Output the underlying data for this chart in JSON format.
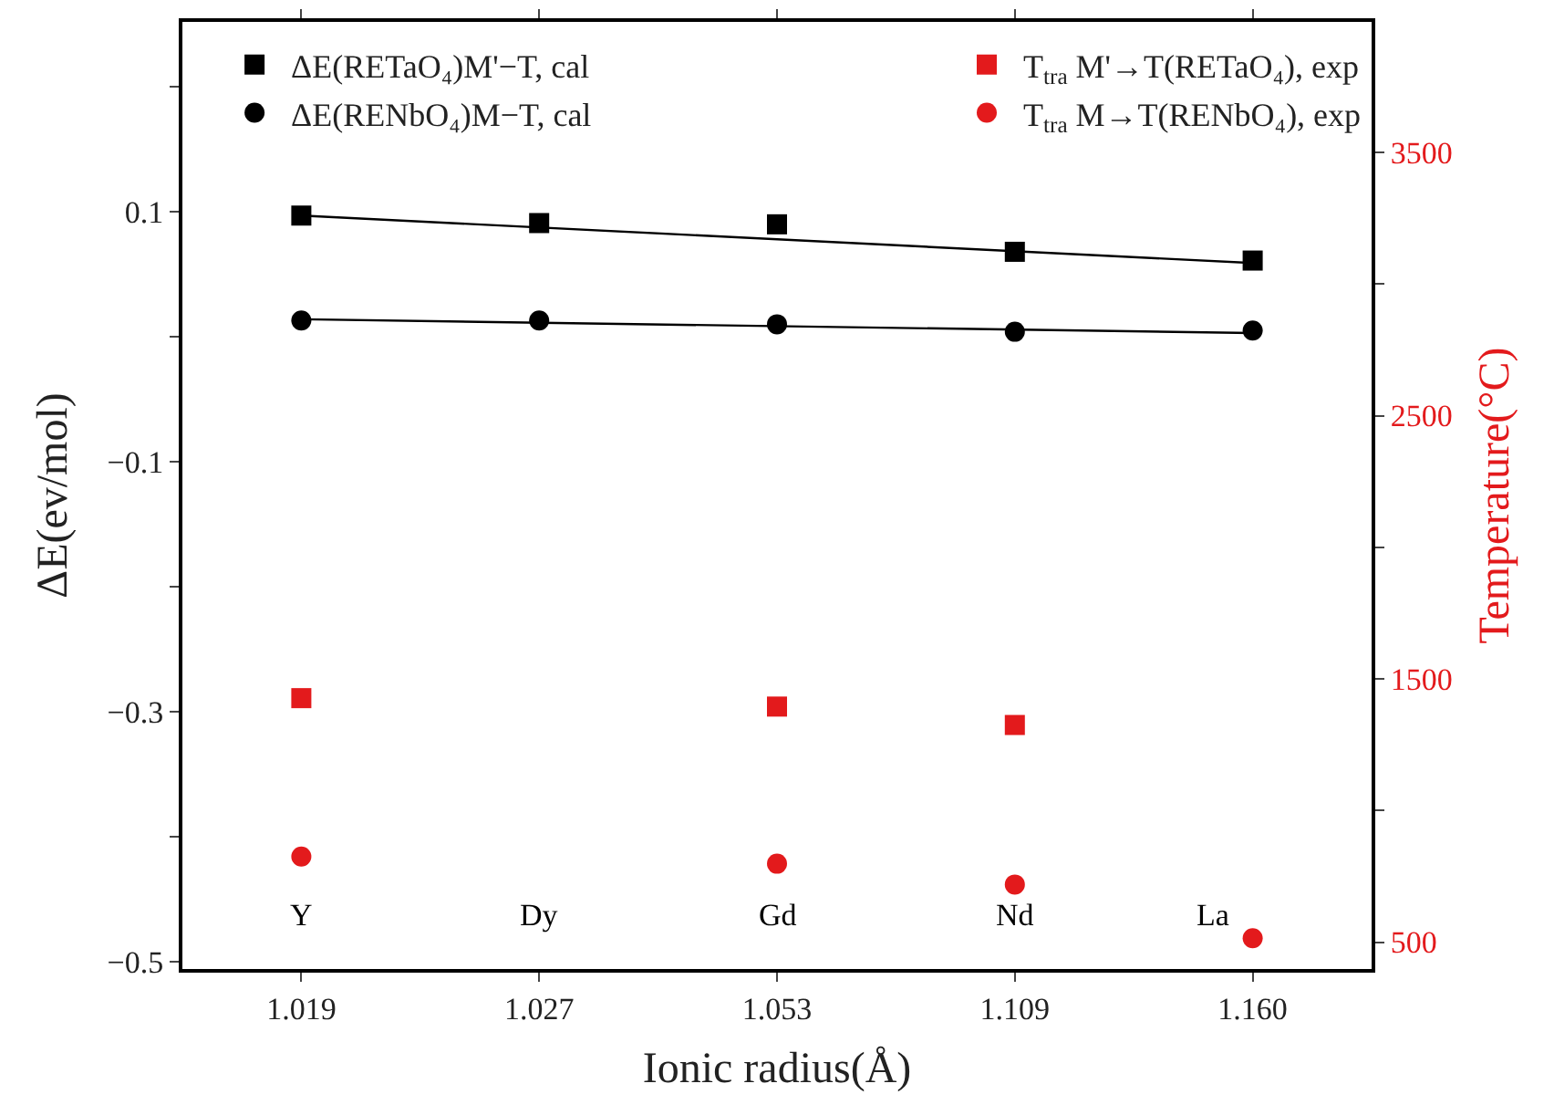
{
  "chart_data": {
    "type": "scatter",
    "xlabel": "Ionic radius(Å)",
    "ylabel": "ΔE(ev/mol)",
    "y2label": "Temperature(°C)",
    "categories": [
      "1.019",
      "1.027",
      "1.053",
      "1.109",
      "1.160"
    ],
    "ylim": [
      -0.506,
      0.252
    ],
    "yticks": [
      {
        "value": 0.2,
        "label": null
      },
      {
        "value": 0.1,
        "label": "0.1"
      },
      {
        "value": 0,
        "label": null
      },
      {
        "value": -0.1,
        "label": "−0.1"
      },
      {
        "value": -0.2,
        "label": null
      },
      {
        "value": -0.3,
        "label": "−0.3"
      },
      {
        "value": -0.4,
        "label": null
      },
      {
        "value": -0.5,
        "label": "−0.5"
      }
    ],
    "y2lim": [
      398,
      3996
    ],
    "y2ticks": [
      3500,
      {
        "value": 3000,
        "label": null
      },
      2500,
      {
        "value": 2000,
        "label": null
      },
      1500,
      {
        "value": 1000,
        "label": null
      },
      500
    ],
    "legend": "top",
    "series": [
      {
        "name": "ΔE(RETaO₄)M'−T, cal",
        "color": "#000000",
        "marker": "square",
        "values": [
          0.097,
          0.091,
          0.09,
          0.068,
          0.061
        ]
      },
      {
        "name": "ΔE(RENbO₄)M−T, cal",
        "color": "#000000",
        "marker": "circle",
        "values": [
          0.013,
          0.013,
          0.01,
          0.004,
          0.005
        ]
      },
      {
        "type": "line",
        "color": "#000000",
        "marker": "none",
        "x": [
          "1.019",
          "1.160"
        ],
        "values": [
          0.097,
          0.059
        ]
      },
      {
        "type": "line",
        "color": "#000000",
        "marker": "none",
        "x": [
          "1.019",
          "1.160"
        ],
        "values": [
          0.014,
          0.003
        ]
      },
      {
        "name": "T$_{tra}$ M'→T(RETaO₄), exp",
        "color": "#e31a1c",
        "marker": "square",
        "axis": "y2",
        "values": [
          1427,
          null,
          1395,
          1325,
          null
        ]
      },
      {
        "name": "T$_{tra}$ M→T(RENbO₄), exp",
        "color": "#e31a1c",
        "marker": "circle",
        "axis": "y2",
        "values": [
          825,
          null,
          798,
          719,
          515
        ]
      }
    ],
    "annotations": [
      "Y",
      "Dy",
      "Gd",
      "Nd",
      "La"
    ]
  }
}
